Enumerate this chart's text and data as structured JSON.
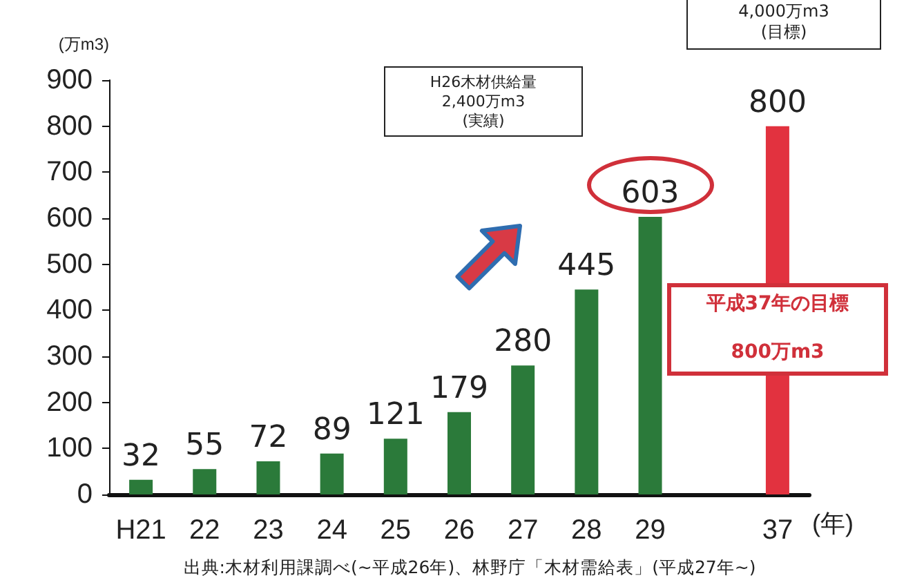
{
  "chart_data": {
    "type": "bar",
    "ylabel": "(万m3)",
    "xlabel": "(年)",
    "categories": [
      "H21",
      "22",
      "23",
      "24",
      "25",
      "26",
      "27",
      "28",
      "29",
      null,
      "37"
    ],
    "values": [
      32,
      55,
      72,
      89,
      121,
      179,
      280,
      445,
      603,
      null,
      800
    ],
    "colors": [
      "#2b7a3a",
      "#2b7a3a",
      "#2b7a3a",
      "#2b7a3a",
      "#2b7a3a",
      "#2b7a3a",
      "#2b7a3a",
      "#2b7a3a",
      "#2b7a3a",
      null,
      "#e2323f"
    ],
    "ylim": [
      0,
      900
    ],
    "yticks": [
      0,
      100,
      200,
      300,
      400,
      500,
      600,
      700,
      800,
      900
    ],
    "grid": false,
    "data_labels": true,
    "annotations": [
      "H26木材供給量\n2,400万m3\n(実績)",
      "4,000万m3\n(目標)",
      "平成37年の目標\n\n800万m3",
      "出典:木材利用課調べ(~平成26年)、林野庁「木材需給表」(平成27年~)"
    ]
  }
}
